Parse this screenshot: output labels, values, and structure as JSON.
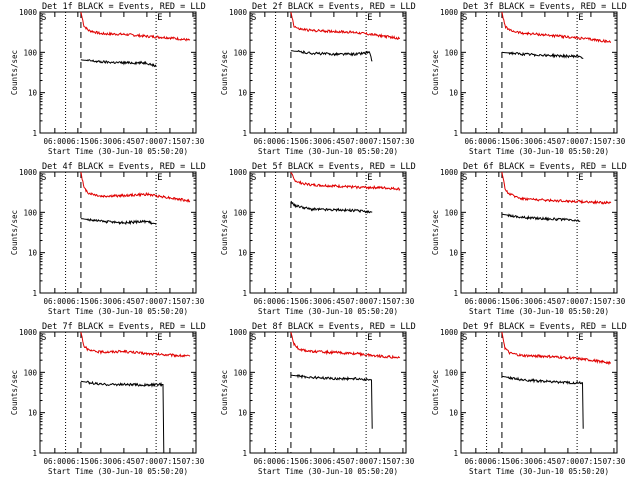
{
  "shared": {
    "y_label": "Counts/sec",
    "x_label": "Start Time (30-Jun-10 05:50:20)",
    "x_tick_labels": [
      "06:00",
      "06:15",
      "06:30",
      "06:45",
      "07:00",
      "07:15",
      "07:30"
    ],
    "y_tick_labels": [
      "1",
      "10",
      "100",
      "1000"
    ],
    "marker_s": "S",
    "marker_e": "E",
    "colors": {
      "events": "#000000",
      "lld": "#e00000",
      "axes": "#000000"
    }
  },
  "chart_data": [
    {
      "type": "line",
      "title": "Det 1f BLACK = Events, RED = LLD",
      "x_range": [
        "05:50:20",
        "07:32:00"
      ],
      "ylim": [
        1,
        1000
      ],
      "yscale": "log",
      "vlines_dotted": [
        "06:07:00",
        "07:06:00"
      ],
      "vline_dashed": "06:17:00",
      "series": [
        {
          "name": "LLD",
          "color": "#e00000",
          "x": [
            "06:17:00",
            "06:19:00",
            "06:22:00",
            "06:30:00",
            "06:45:00",
            "07:00:00",
            "07:15:00",
            "07:28:00"
          ],
          "y": [
            1000,
            450,
            350,
            290,
            280,
            250,
            230,
            200
          ]
        },
        {
          "name": "Events",
          "color": "#000000",
          "x": [
            "06:17:00",
            "06:30:00",
            "06:45:00",
            "07:00:00",
            "07:06:00"
          ],
          "y": [
            65,
            58,
            55,
            55,
            45
          ]
        }
      ]
    },
    {
      "type": "line",
      "title": "Det 2f BLACK = Events, RED = LLD",
      "x_range": [
        "05:50:20",
        "07:32:00"
      ],
      "ylim": [
        1,
        1000
      ],
      "yscale": "log",
      "vlines_dotted": [
        "06:07:00",
        "07:06:00"
      ],
      "vline_dashed": "06:17:00",
      "series": [
        {
          "name": "LLD",
          "color": "#e00000",
          "x": [
            "06:17:00",
            "06:19:00",
            "06:22:00",
            "06:30:00",
            "06:45:00",
            "07:00:00",
            "07:15:00",
            "07:28:00"
          ],
          "y": [
            1000,
            450,
            380,
            350,
            330,
            310,
            260,
            220
          ]
        },
        {
          "name": "Events",
          "color": "#000000",
          "x": [
            "06:17:00",
            "06:30:00",
            "06:45:00",
            "07:00:00",
            "07:08:00",
            "07:10:00"
          ],
          "y": [
            110,
            95,
            90,
            90,
            100,
            60
          ]
        }
      ]
    },
    {
      "type": "line",
      "title": "Det 3f BLACK = Events, RED = LLD",
      "x_range": [
        "05:50:20",
        "07:32:00"
      ],
      "ylim": [
        1,
        1000
      ],
      "yscale": "log",
      "vlines_dotted": [
        "06:07:00",
        "07:06:00"
      ],
      "vline_dashed": "06:17:00",
      "series": [
        {
          "name": "LLD",
          "color": "#e00000",
          "x": [
            "06:17:00",
            "06:19:00",
            "06:22:00",
            "06:30:00",
            "06:45:00",
            "07:00:00",
            "07:15:00",
            "07:28:00"
          ],
          "y": [
            1000,
            450,
            350,
            300,
            270,
            240,
            210,
            180
          ]
        },
        {
          "name": "Events",
          "color": "#000000",
          "x": [
            "06:17:00",
            "06:30:00",
            "06:45:00",
            "07:00:00",
            "07:08:00",
            "07:10:00"
          ],
          "y": [
            100,
            90,
            85,
            80,
            80,
            70
          ]
        }
      ]
    },
    {
      "type": "line",
      "title": "Det 4f BLACK = Events, RED = LLD",
      "x_range": [
        "05:50:20",
        "07:32:00"
      ],
      "ylim": [
        1,
        1000
      ],
      "yscale": "log",
      "vlines_dotted": [
        "06:07:00",
        "07:06:00"
      ],
      "vline_dashed": "06:17:00",
      "series": [
        {
          "name": "LLD",
          "color": "#e00000",
          "x": [
            "06:17:00",
            "06:19:00",
            "06:22:00",
            "06:30:00",
            "06:45:00",
            "07:00:00",
            "07:15:00",
            "07:28:00"
          ],
          "y": [
            1000,
            400,
            300,
            250,
            260,
            280,
            230,
            190
          ]
        },
        {
          "name": "Events",
          "color": "#000000",
          "x": [
            "06:17:00",
            "06:30:00",
            "06:45:00",
            "07:00:00",
            "07:06:00"
          ],
          "y": [
            70,
            60,
            55,
            60,
            50
          ]
        }
      ]
    },
    {
      "type": "line",
      "title": "Det 5f BLACK = Events, RED = LLD",
      "x_range": [
        "05:50:20",
        "07:32:00"
      ],
      "ylim": [
        1,
        1000
      ],
      "yscale": "log",
      "vlines_dotted": [
        "06:07:00",
        "07:06:00"
      ],
      "vline_dashed": "06:17:00",
      "series": [
        {
          "name": "LLD",
          "color": "#e00000",
          "x": [
            "06:17:00",
            "06:19:00",
            "06:22:00",
            "06:30:00",
            "06:45:00",
            "07:00:00",
            "07:15:00",
            "07:28:00"
          ],
          "y": [
            1000,
            650,
            550,
            480,
            450,
            420,
            410,
            380
          ]
        },
        {
          "name": "Events",
          "color": "#000000",
          "x": [
            "06:17:00",
            "06:19:00",
            "06:30:00",
            "06:45:00",
            "07:00:00",
            "07:10:00"
          ],
          "y": [
            190,
            150,
            120,
            115,
            110,
            100
          ]
        }
      ]
    },
    {
      "type": "line",
      "title": "Det 6f BLACK = Events, RED = LLD",
      "x_range": [
        "05:50:20",
        "07:32:00"
      ],
      "ylim": [
        1,
        1000
      ],
      "yscale": "log",
      "vlines_dotted": [
        "06:07:00",
        "07:06:00"
      ],
      "vline_dashed": "06:17:00",
      "series": [
        {
          "name": "LLD",
          "color": "#e00000",
          "x": [
            "06:17:00",
            "06:19:00",
            "06:22:00",
            "06:30:00",
            "06:45:00",
            "07:00:00",
            "07:15:00",
            "07:28:00"
          ],
          "y": [
            1000,
            380,
            280,
            220,
            200,
            190,
            180,
            170
          ]
        },
        {
          "name": "Events",
          "color": "#000000",
          "x": [
            "06:17:00",
            "06:30:00",
            "06:45:00",
            "07:00:00",
            "07:08:00"
          ],
          "y": [
            90,
            75,
            70,
            65,
            60
          ]
        }
      ]
    },
    {
      "type": "line",
      "title": "Det 7f BLACK = Events, RED = LLD",
      "x_range": [
        "05:50:20",
        "07:32:00"
      ],
      "ylim": [
        1,
        1000
      ],
      "yscale": "log",
      "vlines_dotted": [
        "06:07:00",
        "07:06:00"
      ],
      "vline_dashed": "06:17:00",
      "series": [
        {
          "name": "LLD",
          "color": "#e00000",
          "x": [
            "06:17:00",
            "06:19:00",
            "06:22:00",
            "06:30:00",
            "06:45:00",
            "07:00:00",
            "07:15:00",
            "07:28:00"
          ],
          "y": [
            1000,
            450,
            350,
            320,
            330,
            290,
            270,
            250
          ]
        },
        {
          "name": "Events",
          "color": "#000000",
          "x": [
            "06:17:00",
            "06:30:00",
            "06:45:00",
            "07:00:00",
            "07:10:00",
            "07:11:00"
          ],
          "y": [
            60,
            50,
            50,
            48,
            50,
            1
          ]
        }
      ]
    },
    {
      "type": "line",
      "title": "Det 8f BLACK = Events, RED = LLD",
      "x_range": [
        "05:50:20",
        "07:32:00"
      ],
      "ylim": [
        1,
        1000
      ],
      "yscale": "log",
      "vlines_dotted": [
        "06:07:00",
        "07:06:00"
      ],
      "vline_dashed": "06:17:00",
      "series": [
        {
          "name": "LLD",
          "color": "#e00000",
          "x": [
            "06:17:00",
            "06:19:00",
            "06:22:00",
            "06:30:00",
            "06:45:00",
            "07:00:00",
            "07:15:00",
            "07:28:00"
          ],
          "y": [
            1000,
            500,
            380,
            330,
            310,
            290,
            250,
            230
          ]
        },
        {
          "name": "Events",
          "color": "#000000",
          "x": [
            "06:17:00",
            "06:30:00",
            "06:45:00",
            "07:00:00",
            "07:09:00",
            "07:10:00"
          ],
          "y": [
            85,
            75,
            70,
            70,
            65,
            4
          ]
        }
      ]
    },
    {
      "type": "line",
      "title": "Det 9f BLACK = Events, RED = LLD",
      "x_range": [
        "05:50:20",
        "07:32:00"
      ],
      "ylim": [
        1,
        1000
      ],
      "yscale": "log",
      "vlines_dotted": [
        "06:07:00",
        "07:06:00"
      ],
      "vline_dashed": "06:17:00",
      "series": [
        {
          "name": "LLD",
          "color": "#e00000",
          "x": [
            "06:17:00",
            "06:19:00",
            "06:22:00",
            "06:30:00",
            "06:45:00",
            "07:00:00",
            "07:15:00",
            "07:28:00"
          ],
          "y": [
            1000,
            400,
            300,
            260,
            250,
            230,
            200,
            170
          ]
        },
        {
          "name": "Events",
          "color": "#000000",
          "x": [
            "06:17:00",
            "06:30:00",
            "06:45:00",
            "07:00:00",
            "07:09:00",
            "07:10:00"
          ],
          "y": [
            80,
            65,
            60,
            55,
            55,
            4
          ]
        }
      ]
    }
  ]
}
